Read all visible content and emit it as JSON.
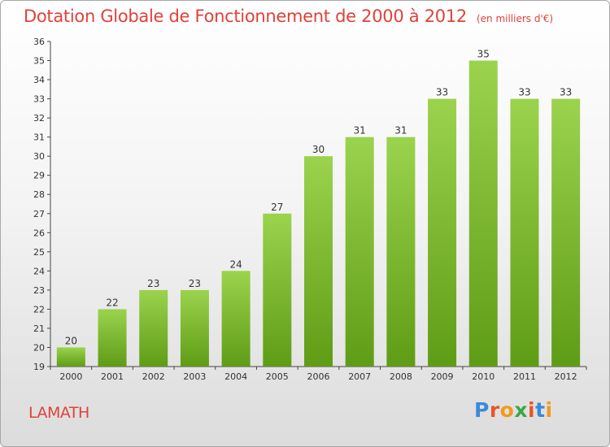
{
  "title": "Dotation Globale de Fonctionnement de 2000 à 2012",
  "unit_label": "(en milliers d'€)",
  "place": "LAMATH",
  "logo": {
    "text": "Proxiti",
    "letter_colors": [
      "#3a8ad8",
      "#e8562a",
      "#f29a1c",
      "#3aa845",
      "#e8562a",
      "#3a8ad8",
      "#f29a1c"
    ]
  },
  "colors": {
    "title": "#e0413a",
    "bar_top": "#9bd34e",
    "bar_bottom": "#5f9c16",
    "place": "#e0413a"
  },
  "chart_data": {
    "type": "bar",
    "title": "Dotation Globale de Fonctionnement de 2000 à 2012",
    "subtitle": "(en milliers d'€)",
    "categories": [
      "2000",
      "2001",
      "2002",
      "2003",
      "2004",
      "2005",
      "2006",
      "2007",
      "2008",
      "2009",
      "2010",
      "2011",
      "2012"
    ],
    "values": [
      20,
      22,
      23,
      23,
      24,
      27,
      30,
      31,
      31,
      33,
      35,
      33,
      33
    ],
    "data_labels": [
      "20",
      "22",
      "23",
      "23",
      "24",
      "27",
      "30",
      "31",
      "31",
      "33",
      "35",
      "33",
      "33"
    ],
    "ylim": [
      19,
      36
    ],
    "yticks": [
      "19",
      "20",
      "21",
      "22",
      "23",
      "24",
      "25",
      "26",
      "27",
      "28",
      "29",
      "30",
      "31",
      "32",
      "33",
      "34",
      "35",
      "36"
    ],
    "grid": false,
    "xlabel": "",
    "ylabel": ""
  }
}
